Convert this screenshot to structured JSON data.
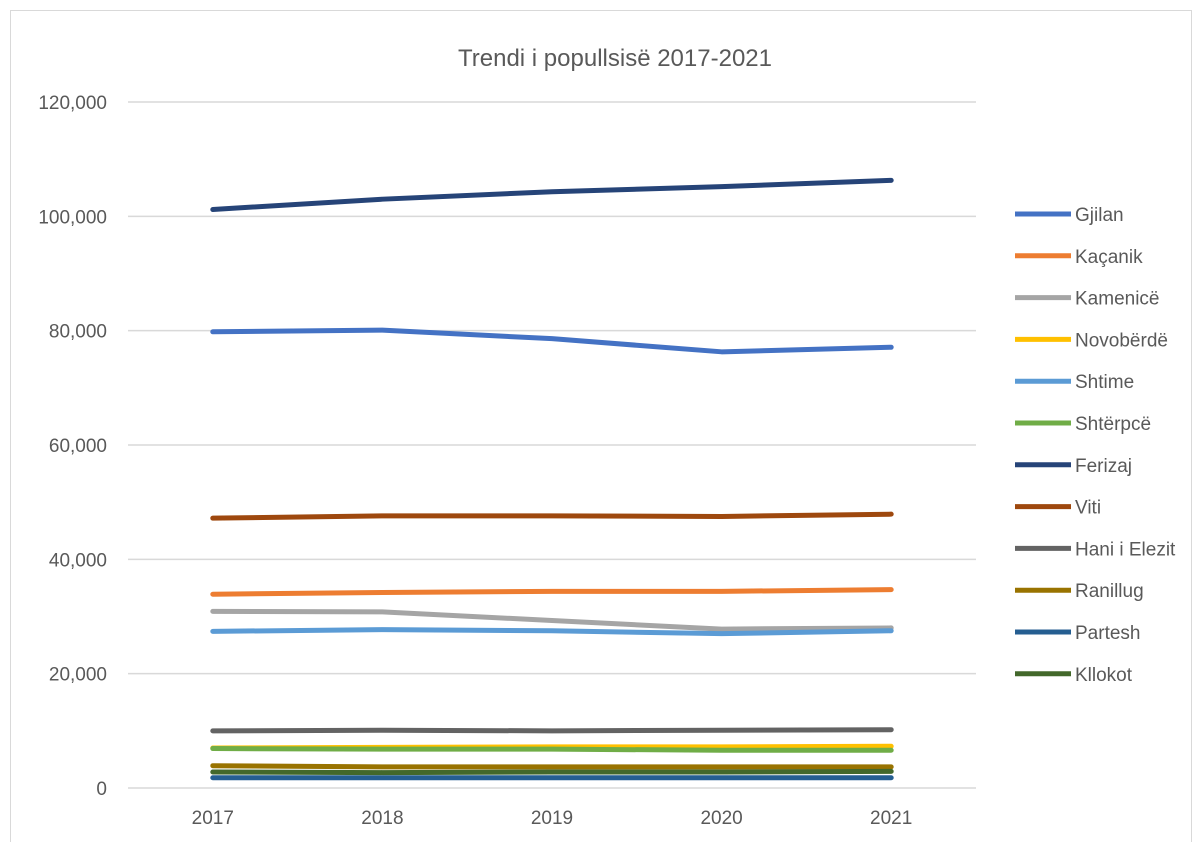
{
  "chart_data": {
    "type": "line",
    "title": "Trendi i popullsisë 2017-2021",
    "xlabel": "",
    "ylabel": "",
    "categories": [
      "2017",
      "2018",
      "2019",
      "2020",
      "2021"
    ],
    "ylim": [
      0,
      120000
    ],
    "yticks": [
      0,
      20000,
      40000,
      60000,
      80000,
      100000,
      120000
    ],
    "ytick_labels": [
      "0",
      "20,000",
      "40,000",
      "60,000",
      "80,000",
      "100,000",
      "120,000"
    ],
    "grid": "horizontal",
    "legend_position": "right",
    "series": [
      {
        "name": "Gjilan",
        "color": "#4472c4",
        "values": [
          79800,
          80100,
          78600,
          76300,
          77100
        ]
      },
      {
        "name": "Kaçanik",
        "color": "#ed7d31",
        "values": [
          33900,
          34200,
          34400,
          34400,
          34700
        ]
      },
      {
        "name": "Kamenicë",
        "color": "#a5a5a5",
        "values": [
          30900,
          30800,
          29300,
          27800,
          28000
        ]
      },
      {
        "name": "Novobërdë",
        "color": "#ffc000",
        "values": [
          7000,
          7100,
          7200,
          7200,
          7300
        ]
      },
      {
        "name": "Shtime",
        "color": "#5b9bd5",
        "values": [
          27400,
          27700,
          27500,
          27000,
          27500
        ]
      },
      {
        "name": "Shtërpcë",
        "color": "#70ad47",
        "values": [
          6900,
          6800,
          6800,
          6600,
          6600
        ]
      },
      {
        "name": "Ferizaj",
        "color": "#264478",
        "values": [
          101200,
          103000,
          104300,
          105200,
          106300
        ]
      },
      {
        "name": "Viti",
        "color": "#9e480e",
        "values": [
          47200,
          47600,
          47600,
          47500,
          47900
        ]
      },
      {
        "name": "Hani i Elezit",
        "color": "#636363",
        "values": [
          10000,
          10100,
          10000,
          10100,
          10200
        ]
      },
      {
        "name": "Ranillug",
        "color": "#997300",
        "values": [
          3900,
          3700,
          3700,
          3700,
          3700
        ]
      },
      {
        "name": "Partesh",
        "color": "#255e91",
        "values": [
          1800,
          1800,
          1800,
          1800,
          1800
        ]
      },
      {
        "name": "Kllokot",
        "color": "#43682b",
        "values": [
          2800,
          2700,
          2800,
          2800,
          2900
        ]
      }
    ]
  }
}
